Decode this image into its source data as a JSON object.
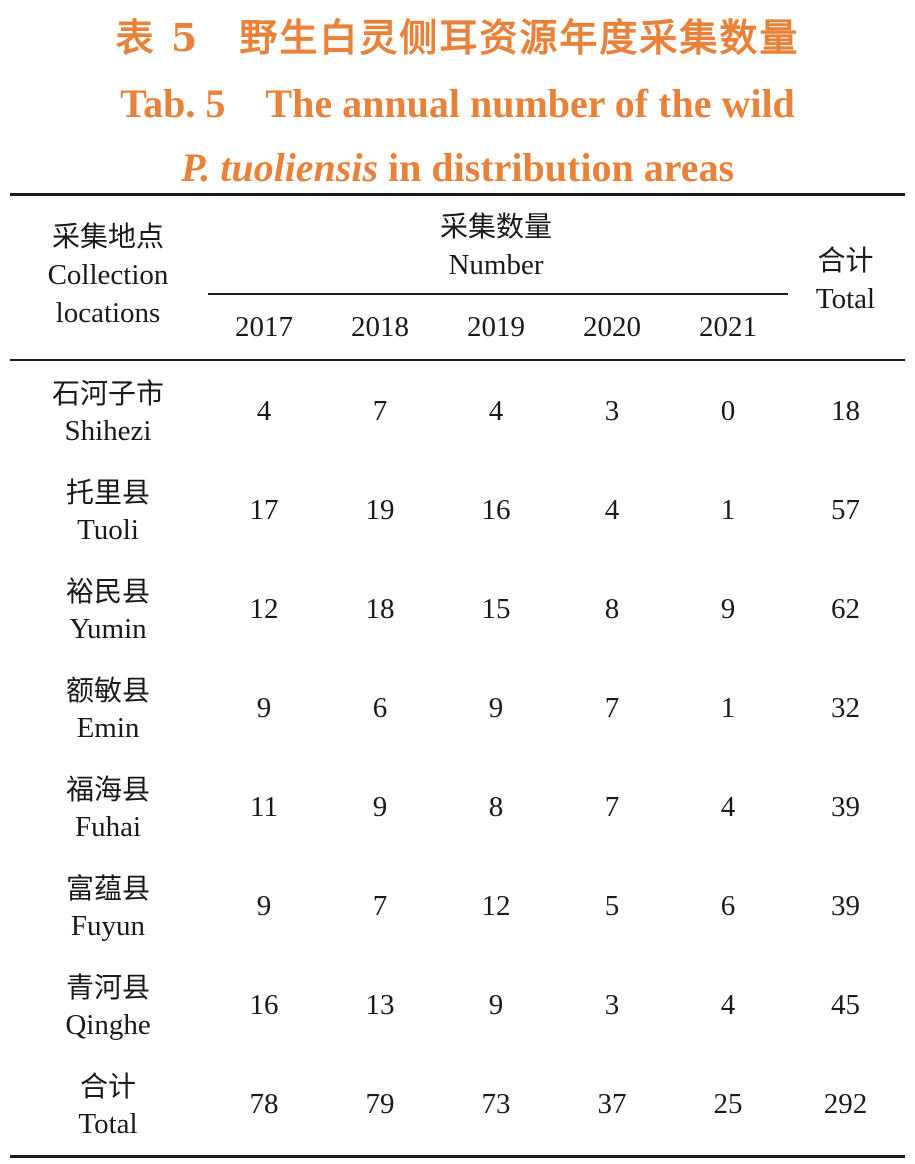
{
  "caption": {
    "cn": "表 5　野生白灵侧耳资源年度采集数量",
    "en_line1": "Tab. 5　The annual number of the wild",
    "en_italic": "P.  tuoliensis",
    "en_line2_rest": " in distribution areas"
  },
  "header": {
    "location_cn": "采集地点",
    "location_en1": "Collection",
    "location_en2": "locations",
    "number_cn": "采集数量",
    "number_en": "Number",
    "total_cn": "合计",
    "total_en": "Total",
    "years": [
      "2017",
      "2018",
      "2019",
      "2020",
      "2021"
    ]
  },
  "rows": [
    {
      "cn": "石河子市",
      "en": "Shihezi",
      "values": [
        "4",
        "7",
        "4",
        "3",
        "0"
      ],
      "total": "18"
    },
    {
      "cn": "托里县",
      "en": "Tuoli",
      "values": [
        "17",
        "19",
        "16",
        "4",
        "1"
      ],
      "total": "57"
    },
    {
      "cn": "裕民县",
      "en": "Yumin",
      "values": [
        "12",
        "18",
        "15",
        "8",
        "9"
      ],
      "total": "62"
    },
    {
      "cn": "额敏县",
      "en": "Emin",
      "values": [
        "9",
        "6",
        "9",
        "7",
        "1"
      ],
      "total": "32"
    },
    {
      "cn": "福海县",
      "en": "Fuhai",
      "values": [
        "11",
        "9",
        "8",
        "7",
        "4"
      ],
      "total": "39"
    },
    {
      "cn": "富蕴县",
      "en": "Fuyun",
      "values": [
        "9",
        "7",
        "12",
        "5",
        "6"
      ],
      "total": "39"
    },
    {
      "cn": "青河县",
      "en": "Qinghe",
      "values": [
        "16",
        "13",
        "9",
        "3",
        "4"
      ],
      "total": "45"
    },
    {
      "cn": "合计",
      "en": "Total",
      "values": [
        "78",
        "79",
        "73",
        "37",
        "25"
      ],
      "total": "292"
    }
  ],
  "colors": {
    "caption": "#e8823a",
    "text": "#1a1a1a"
  }
}
